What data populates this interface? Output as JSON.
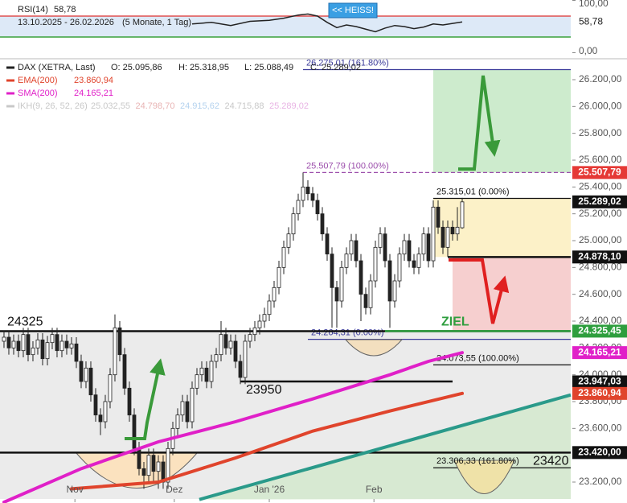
{
  "chart_data": [
    {
      "type": "line",
      "name": "RSI(14)",
      "value": 58.78,
      "value_label": "58,78",
      "date_range": "13.10.2025 - 26.02.2026",
      "period": "(5 Monate, 1 Tag)",
      "signal": "<< HEISS!",
      "color": "#222",
      "xlim": [
        -0.83,
        117.5
      ],
      "ylim": [
        0,
        100
      ],
      "yticks": [
        {
          "value": 100,
          "label": "100,00"
        },
        {
          "value": 0,
          "label": "0,00"
        }
      ],
      "overbought": 70,
      "oversold": 30,
      "x": [
        39,
        43,
        47,
        51,
        55,
        58,
        61,
        63,
        65,
        67,
        69,
        71,
        73,
        75,
        77,
        79,
        81,
        83,
        85,
        87,
        89,
        91,
        93,
        95
      ],
      "values": [
        55,
        58,
        52,
        60,
        62,
        66,
        72,
        74,
        70,
        58,
        48,
        53,
        50,
        45,
        40,
        47,
        52,
        50,
        46,
        49,
        55,
        53,
        56,
        58.78
      ]
    },
    {
      "type": "candlestick",
      "title": "DAX (XETRA, Last)",
      "ohlc_text": [
        "O: 25.095,86",
        "H: 25.318,95",
        "L: 25.088,49",
        "C: 25.289,02"
      ],
      "xlim": [
        -0.83,
        117.5
      ],
      "ylim": [
        23074,
        26344
      ],
      "xticks": [
        {
          "value": 14.7,
          "label": "Nov"
        },
        {
          "value": 35.3,
          "label": "Dez"
        },
        {
          "value": 55,
          "label": "Jan '26"
        },
        {
          "value": 76.7,
          "label": "Feb"
        }
      ],
      "yticks": [
        {
          "value": 26200,
          "label": "26.200,00"
        },
        {
          "value": 26000,
          "label": "26.000,00"
        },
        {
          "value": 25800,
          "label": "25.800,00"
        },
        {
          "value": 25600,
          "label": "25.600,00"
        },
        {
          "value": 25400,
          "label": "25.400,00"
        },
        {
          "value": 25200,
          "label": "25.200,00"
        },
        {
          "value": 25000,
          "label": "25.000,00"
        },
        {
          "value": 24800,
          "label": "24.800,00"
        },
        {
          "value": 24600,
          "label": "24.600,00"
        },
        {
          "value": 24400,
          "label": "24.400,00"
        },
        {
          "value": 24200,
          "label": "24.200,00"
        },
        {
          "value": 24000,
          "label": "24.000,00"
        },
        {
          "value": 23800,
          "label": "23.800,00"
        },
        {
          "value": 23600,
          "label": "23.600,00"
        },
        {
          "value": 23400,
          "label": "23.400,00"
        },
        {
          "value": 23200,
          "label": "23.200,00"
        }
      ],
      "grid": false,
      "up_color": "#ffffff",
      "down_color": "#222222",
      "candles": [
        [
          24250,
          24330,
          24200,
          24280
        ],
        [
          24280,
          24330,
          24150,
          24200
        ],
        [
          24200,
          24300,
          24150,
          24250
        ],
        [
          24250,
          24300,
          24130,
          24180
        ],
        [
          24180,
          24350,
          24130,
          24300
        ],
        [
          24300,
          24350,
          24100,
          24150
        ],
        [
          24150,
          24250,
          24100,
          24200
        ],
        [
          24200,
          24310,
          24150,
          24260
        ],
        [
          24260,
          24310,
          24070,
          24120
        ],
        [
          24120,
          24290,
          24070,
          24240
        ],
        [
          24240,
          24350,
          24190,
          24300
        ],
        [
          24300,
          24350,
          24130,
          24180
        ],
        [
          24180,
          24300,
          24130,
          24250
        ],
        [
          24250,
          24300,
          24150,
          24200
        ],
        [
          24200,
          24280,
          24150,
          24230
        ],
        [
          24230,
          24280,
          24050,
          24100
        ],
        [
          24100,
          24150,
          23900,
          23950
        ],
        [
          23950,
          24100,
          23900,
          24050
        ],
        [
          24050,
          24100,
          23800,
          23850
        ],
        [
          23850,
          23900,
          23650,
          23700
        ],
        [
          23700,
          23750,
          23550,
          23650
        ],
        [
          23650,
          23850,
          23600,
          23800
        ],
        [
          23800,
          24050,
          23750,
          24000
        ],
        [
          24000,
          24450,
          23950,
          24350
        ],
        [
          24350,
          24400,
          24100,
          24150
        ],
        [
          24150,
          24200,
          23850,
          23900
        ],
        [
          23900,
          23950,
          23650,
          23700
        ],
        [
          23700,
          23750,
          23400,
          23450
        ],
        [
          23450,
          23500,
          23250,
          23300
        ],
        [
          23300,
          23350,
          23150,
          23250
        ],
        [
          23250,
          23450,
          23200,
          23400
        ],
        [
          23400,
          23450,
          23200,
          23280
        ],
        [
          23280,
          23400,
          23150,
          23350
        ],
        [
          23350,
          23400,
          23150,
          23200
        ],
        [
          23200,
          23500,
          23150,
          23450
        ],
        [
          23450,
          23650,
          23400,
          23600
        ],
        [
          23600,
          23750,
          23550,
          23700
        ],
        [
          23700,
          23850,
          23650,
          23800
        ],
        [
          23800,
          23850,
          23600,
          23650
        ],
        [
          23650,
          23950,
          23600,
          23900
        ],
        [
          23900,
          24050,
          23850,
          24000
        ],
        [
          24000,
          24100,
          23950,
          24050
        ],
        [
          24050,
          24100,
          23900,
          23950
        ],
        [
          23950,
          24150,
          23900,
          24100
        ],
        [
          24100,
          24200,
          24050,
          24150
        ],
        [
          24150,
          24400,
          24100,
          24300
        ],
        [
          24300,
          24350,
          24150,
          24200
        ],
        [
          24200,
          24300,
          24150,
          24250
        ],
        [
          24250,
          24300,
          24050,
          24100
        ],
        [
          24100,
          24150,
          23930,
          23980
        ],
        [
          23980,
          24300,
          23930,
          24250
        ],
        [
          24250,
          24350,
          24200,
          24300
        ],
        [
          24300,
          24400,
          24250,
          24350
        ],
        [
          24350,
          24450,
          24300,
          24400
        ],
        [
          24400,
          24500,
          24350,
          24450
        ],
        [
          24450,
          24600,
          24400,
          24550
        ],
        [
          24550,
          24700,
          24500,
          24650
        ],
        [
          24650,
          24850,
          24600,
          24800
        ],
        [
          24800,
          25000,
          24750,
          24950
        ],
        [
          24950,
          25100,
          24900,
          25050
        ],
        [
          25050,
          25250,
          25000,
          25200
        ],
        [
          25200,
          25350,
          25150,
          25300
        ],
        [
          25300,
          25508,
          25250,
          25400
        ],
        [
          25400,
          25450,
          25300,
          25350
        ],
        [
          25350,
          25400,
          25250,
          25300
        ],
        [
          25300,
          25350,
          25150,
          25200
        ],
        [
          25200,
          25250,
          25000,
          25050
        ],
        [
          25050,
          25100,
          24850,
          24900
        ],
        [
          24900,
          24950,
          24350,
          24650
        ],
        [
          24650,
          24700,
          24350,
          24550
        ],
        [
          24550,
          24850,
          24500,
          24800
        ],
        [
          24800,
          24950,
          24750,
          24900
        ],
        [
          24900,
          25050,
          24850,
          25000
        ],
        [
          25000,
          25050,
          24800,
          24850
        ],
        [
          24850,
          24900,
          24400,
          24600
        ],
        [
          24600,
          24650,
          24450,
          24500
        ],
        [
          24500,
          24750,
          24450,
          24700
        ],
        [
          24700,
          25000,
          24650,
          24950
        ],
        [
          24950,
          25100,
          24900,
          25050
        ],
        [
          25050,
          25100,
          24800,
          24850
        ],
        [
          24850,
          24900,
          24350,
          24550
        ],
        [
          24550,
          24750,
          24500,
          24700
        ],
        [
          24700,
          24950,
          24650,
          24900
        ],
        [
          24900,
          25050,
          24850,
          25000
        ],
        [
          25000,
          25050,
          24800,
          24850
        ],
        [
          24850,
          24900,
          24750,
          24800
        ],
        [
          24800,
          24950,
          24750,
          24900
        ],
        [
          24900,
          25100,
          24850,
          25050
        ],
        [
          25050,
          25100,
          24800,
          24850
        ],
        [
          24850,
          25300,
          24800,
          25250
        ],
        [
          25250,
          25300,
          25050,
          25100
        ],
        [
          25100,
          25150,
          24900,
          24950
        ],
        [
          24950,
          25150,
          24880,
          25100
        ],
        [
          25100,
          25150,
          25000,
          25050
        ],
        [
          25050,
          25250,
          25000,
          25100
        ],
        [
          25095.86,
          25318.95,
          25088.49,
          25289.02
        ]
      ],
      "series": [
        {
          "name": "EMA(200)",
          "color": "#e0442c",
          "value_label": "23.860,94",
          "x": [
            14,
            32,
            48,
            64,
            80,
            95
          ],
          "values": [
            23150,
            23200,
            23380,
            23580,
            23730,
            23860.94
          ]
        },
        {
          "name": "SMA(200)",
          "color": "#e020c8",
          "value_label": "24.165,21",
          "x": [
            0,
            16,
            32,
            48,
            64,
            80,
            88,
            95
          ],
          "values": [
            23050,
            23300,
            23500,
            23650,
            23820,
            24000,
            24100,
            24165.21
          ]
        }
      ],
      "ikh": {
        "name": "IKH(9, 26, 52, 26)",
        "values_text": [
          "25.032,55",
          "24.798,70",
          "24.915,62",
          "24.715,88",
          "25.289,02"
        ],
        "colors": [
          "#c8c8c8",
          "#e8b4b4",
          "#b4d2ee",
          "#c8c8c8",
          "#e8b4e4"
        ]
      },
      "trendline": {
        "color": "#2a9a8a",
        "x": [
          40.5,
          117.5
        ],
        "values": [
          23070,
          23850
        ]
      },
      "zones": [
        {
          "from": 25507.79,
          "to": 26275.01,
          "x": [
            89,
            117.5
          ],
          "color": "#cdebcd"
        },
        {
          "from": 24878.1,
          "to": 25315.01,
          "x": [
            89,
            117.5
          ],
          "color": "#fcf1c8"
        },
        {
          "from": 24325.45,
          "to": 24878.1,
          "x": [
            93,
            117.5
          ],
          "color": "#f6cfcf"
        }
      ],
      "fib_lines": [
        {
          "value": 26275.01,
          "label": "26.275,01 (161.80%)",
          "x": [
            62,
            117.5
          ],
          "color": "#3a3a9a",
          "dashed": false
        },
        {
          "value": 25507.79,
          "label": "25.507,79 (100.00%)",
          "x": [
            62,
            117.5
          ],
          "color": "#9b4dab",
          "dashed": true
        },
        {
          "value": 25315.01,
          "label": "25.315,01 (0.00%)",
          "x": [
            89,
            117.5
          ],
          "color": "#111111",
          "dashed": false
        },
        {
          "value": 24264.31,
          "label": "24.264,31 (0.00%)",
          "x": [
            63,
            117.5
          ],
          "color": "#3a3a9a",
          "dashed": false
        },
        {
          "value": 24073.55,
          "label": "24.073,55 (100.00%)",
          "x": [
            89,
            117.5
          ],
          "color": "#111111",
          "dashed": false
        },
        {
          "value": 23306.33,
          "label": "23.306,33 (161.80%)",
          "x": [
            89,
            117.5
          ],
          "color": "#111111",
          "dashed": false
        }
      ],
      "levels": [
        {
          "value": 24325,
          "label": "24325",
          "x": [
            -0.83,
            117.5
          ],
          "color": "#111111",
          "label_x": 0,
          "label_pos": "above"
        },
        {
          "value": 23420,
          "label": "23420",
          "x": [
            -0.83,
            117.5
          ],
          "color": "#111111",
          "label_x": 109,
          "label_pos": "below"
        },
        {
          "value": 23950,
          "label": "23950",
          "x": [
            49,
            93
          ],
          "color": "#111111",
          "label_x": 49.5,
          "label_pos": "below"
        },
        {
          "value": 24878.1,
          "x": [
            92,
            117.5
          ],
          "color": "#111111"
        },
        {
          "value": 24325.45,
          "label": "ZIEL",
          "x": [
            79,
            117.5
          ],
          "color": "#2e9e3e",
          "label_x": 90,
          "label_pos": "above"
        }
      ],
      "price_labels": [
        {
          "value": 25507.79,
          "label": "25.507,79",
          "color": "#e53935"
        },
        {
          "value": 25289.02,
          "label": "25.289,02",
          "color": "#111111"
        },
        {
          "value": 24878.1,
          "label": "24.878,10",
          "color": "#111111"
        },
        {
          "value": 24325.45,
          "label": "24.325,45",
          "color": "#2e9e3e"
        },
        {
          "value": 24165.21,
          "label": "24.165,21",
          "color": "#e020c8"
        },
        {
          "value": 23947.03,
          "label": "23.947,03",
          "color": "#111111"
        },
        {
          "value": 23860.94,
          "label": "23.860,94",
          "color": "#e0442c"
        },
        {
          "value": 23420,
          "label": "23.420,00",
          "color": "#111111"
        }
      ]
    }
  ]
}
